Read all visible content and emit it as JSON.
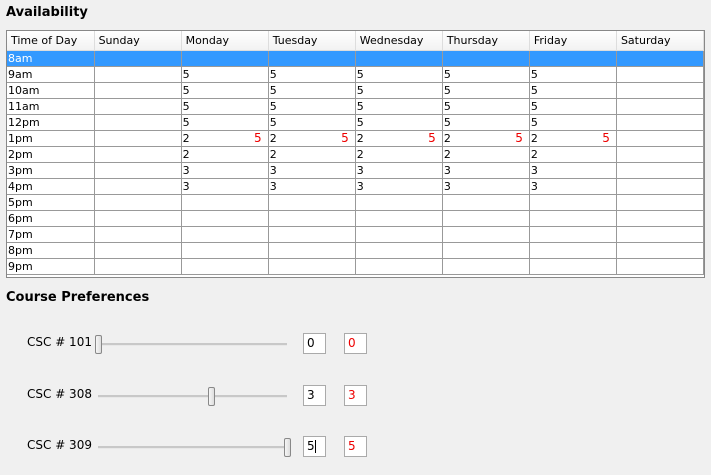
{
  "availability": {
    "title": "Availability",
    "columns": [
      "Time of Day",
      "Sunday",
      "Monday",
      "Tuesday",
      "Wednesday",
      "Thursday",
      "Friday",
      "Saturday"
    ],
    "selected_row": 0,
    "rows": [
      {
        "time": "8am",
        "cells": [
          "",
          "",
          "",
          "",
          "",
          "",
          ""
        ]
      },
      {
        "time": "9am",
        "cells": [
          "",
          "5",
          "5",
          "5",
          "5",
          "5",
          ""
        ]
      },
      {
        "time": "10am",
        "cells": [
          "",
          "5",
          "5",
          "5",
          "5",
          "5",
          ""
        ]
      },
      {
        "time": "11am",
        "cells": [
          "",
          "5",
          "5",
          "5",
          "5",
          "5",
          ""
        ]
      },
      {
        "time": "12pm",
        "cells": [
          "",
          "5",
          "5",
          "5",
          "5",
          "5",
          ""
        ]
      },
      {
        "time": "1pm",
        "cells": [
          "",
          "2",
          "2",
          "2",
          "2",
          "2",
          ""
        ],
        "red": [
          "",
          "5",
          "5",
          "5",
          "5",
          "5",
          ""
        ]
      },
      {
        "time": "2pm",
        "cells": [
          "",
          "2",
          "2",
          "2",
          "2",
          "2",
          ""
        ]
      },
      {
        "time": "3pm",
        "cells": [
          "",
          "3",
          "3",
          "3",
          "3",
          "3",
          ""
        ]
      },
      {
        "time": "4pm",
        "cells": [
          "",
          "3",
          "3",
          "3",
          "3",
          "3",
          ""
        ]
      },
      {
        "time": "5pm",
        "cells": [
          "",
          "",
          "",
          "",
          "",
          "",
          ""
        ]
      },
      {
        "time": "6pm",
        "cells": [
          "",
          "",
          "",
          "",
          "",
          "",
          ""
        ]
      },
      {
        "time": "7pm",
        "cells": [
          "",
          "",
          "",
          "",
          "",
          "",
          ""
        ]
      },
      {
        "time": "8pm",
        "cells": [
          "",
          "",
          "",
          "",
          "",
          "",
          ""
        ]
      },
      {
        "time": "9pm",
        "cells": [
          "",
          "",
          "",
          "",
          "",
          "",
          ""
        ]
      }
    ]
  },
  "preferences": {
    "title": "Course Preferences",
    "slider_max": 5,
    "courses": [
      {
        "label": "CSC # 101",
        "value": 0,
        "input": "0",
        "display": "0"
      },
      {
        "label": "CSC # 308",
        "value": 3,
        "input": "3",
        "display": "3"
      },
      {
        "label": "CSC # 309",
        "value": 5,
        "input": "5",
        "display": "5",
        "focused": true
      }
    ]
  },
  "colors": {
    "selection": "#3399ff",
    "highlight_text": "#ee0000"
  }
}
